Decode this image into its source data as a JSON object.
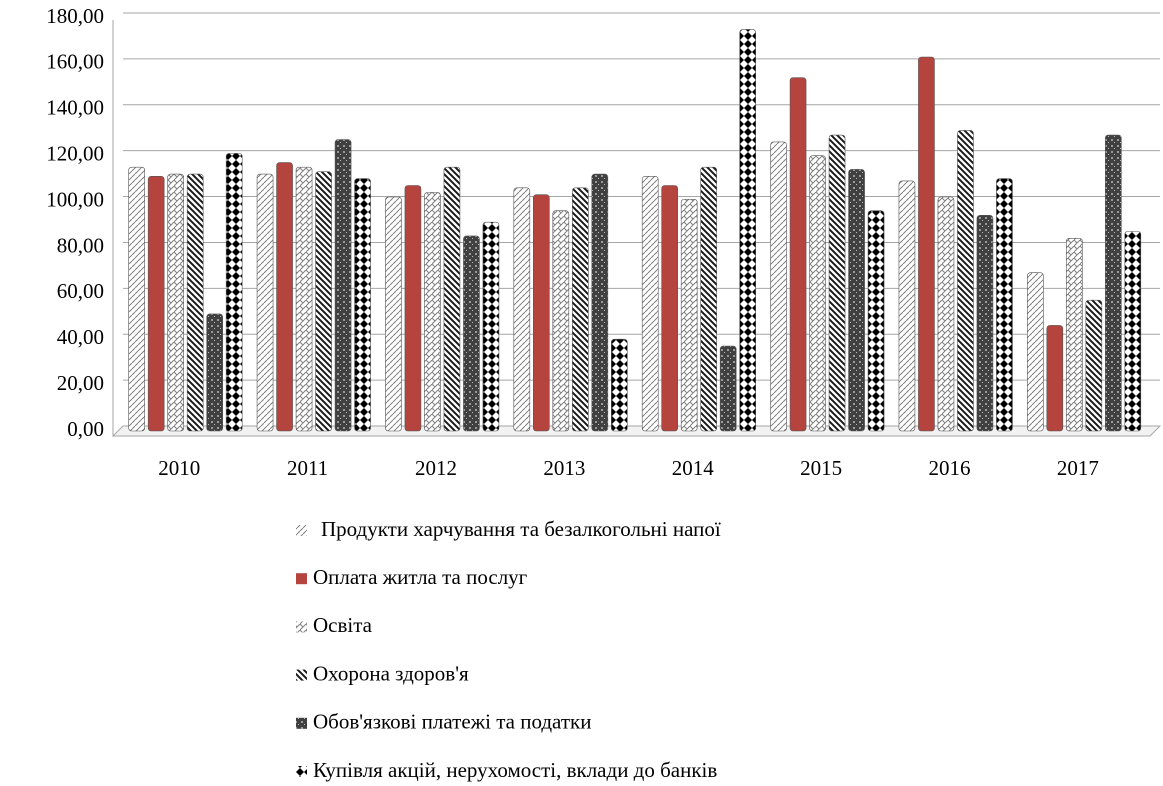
{
  "chart_data": {
    "type": "bar",
    "categories": [
      "2010",
      "2011",
      "2012",
      "2013",
      "2014",
      "2015",
      "2016",
      "2017"
    ],
    "series": [
      {
        "name": "Продукти харчування та безалкогольні напої",
        "color": "#7f7f7f",
        "values": [
          115,
          112,
          102,
          106,
          111,
          126,
          109,
          69
        ]
      },
      {
        "name": "Оплата житла та послуг",
        "color": "#b5443f",
        "values": [
          111,
          117,
          107,
          103,
          107,
          154,
          163,
          46
        ]
      },
      {
        "name": "Освіта",
        "color": "#7f7f7f",
        "values": [
          112,
          115,
          104,
          96,
          101,
          120,
          102,
          84
        ]
      },
      {
        "name": "Охорона здоров'я",
        "color": "#1a1a1a",
        "values": [
          112,
          113,
          115,
          106,
          115,
          129,
          131,
          57
        ]
      },
      {
        "name": "Обов'язкові платежі та податки",
        "color": "#404040",
        "values": [
          51,
          127,
          85,
          112,
          37,
          114,
          94,
          129
        ]
      },
      {
        "name": "Купівля акцій, нерухомості, вклади до банків",
        "color": "#000000",
        "values": [
          121,
          110,
          91,
          40,
          175,
          96,
          110,
          87
        ]
      }
    ],
    "ylim": [
      0,
      180
    ],
    "yticks": [
      {
        "value": 0,
        "label": "0,00"
      },
      {
        "value": 20,
        "label": "20,00"
      },
      {
        "value": 40,
        "label": "40,00"
      },
      {
        "value": 60,
        "label": "60,00"
      },
      {
        "value": 80,
        "label": "80,00"
      },
      {
        "value": 100,
        "label": "100,00"
      },
      {
        "value": 120,
        "label": "120,00"
      },
      {
        "value": 140,
        "label": "140,00"
      },
      {
        "value": 160,
        "label": "160,00"
      },
      {
        "value": 180,
        "label": "180,00"
      }
    ],
    "grid": true
  }
}
